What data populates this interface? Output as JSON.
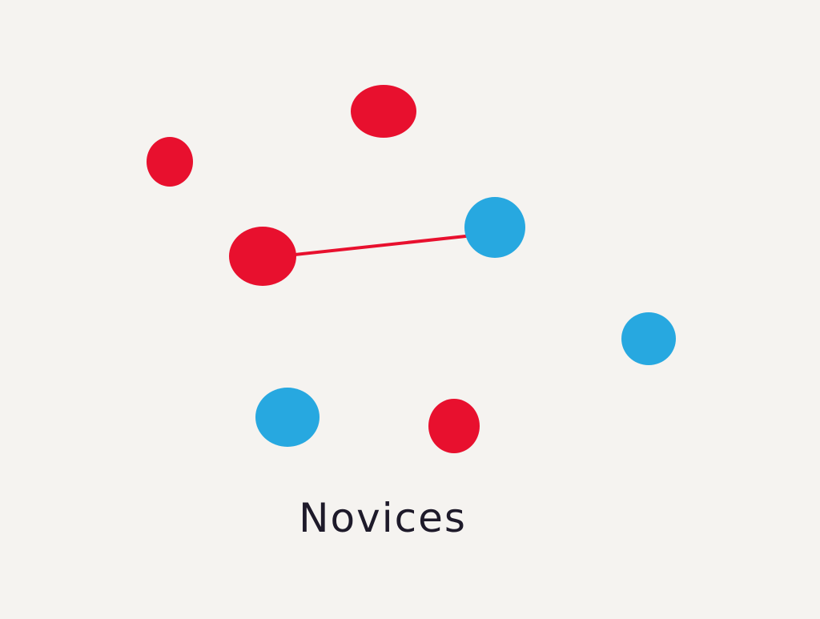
{
  "caption": "Novices",
  "colors": {
    "background": "#f5f3f0",
    "red": "#e8102e",
    "blue": "#27a8e0",
    "line": "#e8102e",
    "text": "#1e1a2a"
  },
  "nodes": [
    {
      "id": "red-1",
      "color": "red"
    },
    {
      "id": "red-2",
      "color": "red"
    },
    {
      "id": "red-3",
      "color": "red"
    },
    {
      "id": "red-4",
      "color": "red"
    },
    {
      "id": "blue-1",
      "color": "blue"
    },
    {
      "id": "blue-2",
      "color": "blue"
    },
    {
      "id": "blue-3",
      "color": "blue"
    }
  ],
  "links": [
    {
      "from": "red-3",
      "to": "blue-1"
    }
  ]
}
